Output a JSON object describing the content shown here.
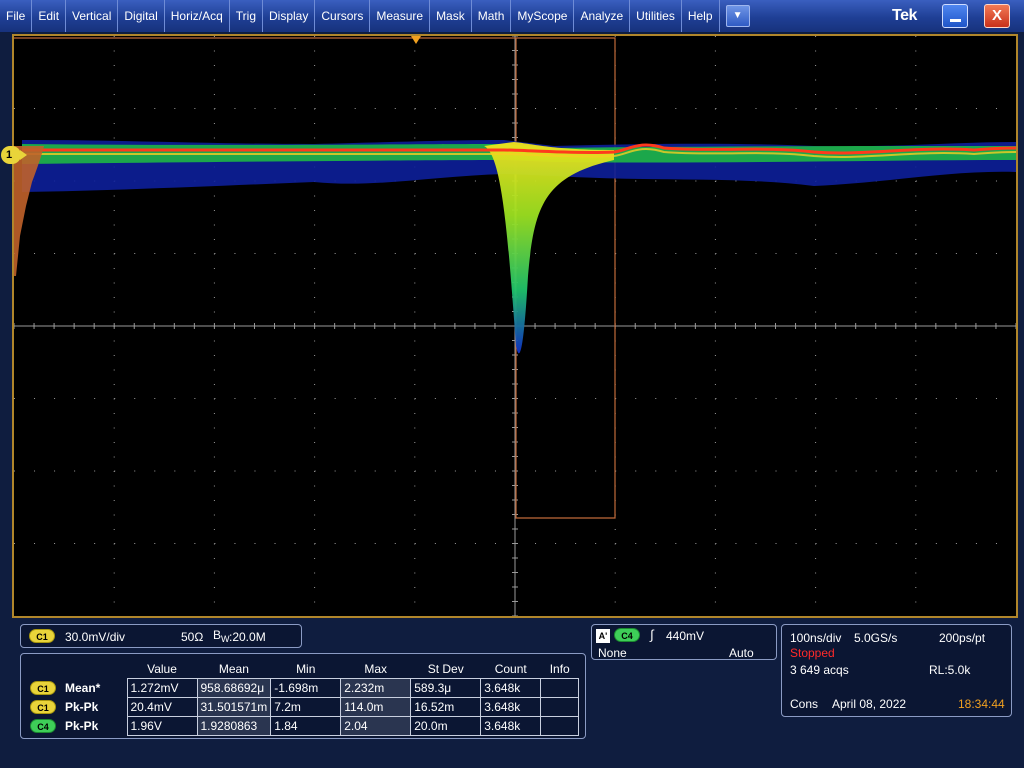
{
  "menu": [
    "File",
    "Edit",
    "Vertical",
    "Digital",
    "Horiz/Acq",
    "Trig",
    "Display",
    "Cursors",
    "Measure",
    "Mask",
    "Math",
    "MyScope",
    "Analyze",
    "Utilities",
    "Help"
  ],
  "dropdown_glyph": "▼",
  "brand": "Tek",
  "window": {
    "close_label": "X"
  },
  "ch1_marker": "1",
  "channel": {
    "badge": "C1",
    "scale": "30.0mV/div",
    "impedance": "50Ω",
    "bw_prefix": "B",
    "bw_subscript": "W",
    "bw_value": ":20.0M"
  },
  "measurements": {
    "headers": [
      "Value",
      "Mean",
      "Min",
      "Max",
      "St Dev",
      "Count",
      "Info"
    ],
    "rows": [
      {
        "source": "C1",
        "source_color": "yellow",
        "label": "Mean*",
        "value": "1.272mV",
        "mean": "958.68692μ",
        "min": "-1.698m",
        "max": "2.232m",
        "stdev": "589.3μ",
        "count": "3.648k",
        "info": ""
      },
      {
        "source": "C1",
        "source_color": "yellow",
        "label": "Pk-Pk",
        "value": "20.4mV",
        "mean": "31.501571m",
        "min": "7.2m",
        "max": "114.0m",
        "stdev": "16.52m",
        "count": "3.648k",
        "info": ""
      },
      {
        "source": "C4",
        "source_color": "green",
        "label": "Pk-Pk",
        "value": "1.96V",
        "mean": "1.9280863",
        "min": "1.84",
        "max": "2.04",
        "stdev": "20.0m",
        "count": "3.648k",
        "info": ""
      }
    ]
  },
  "trigger": {
    "a_badge": "A'",
    "source": "C4",
    "slope_glyph": "∫",
    "level": "440mV",
    "coupling": "None",
    "mode": "Auto"
  },
  "timebase": {
    "horiz": "100ns/div",
    "rate": "5.0GS/s",
    "resolution": "200ps/pt",
    "state": "Stopped",
    "acqs": "3 649 acqs",
    "record_length": "RL:5.0k",
    "mode": "Cons",
    "date": "April 08, 2022",
    "time": "18:34:44"
  },
  "colors": {
    "menu_blue": "#1f3f95",
    "grid": "#9a9a9a",
    "frame": "#b0862b",
    "ch1": "#e9d43a",
    "ch4": "#3ece58",
    "stopped": "#ff2a2a",
    "clock": "#f0a020",
    "c4_trace": "#c06a3a"
  }
}
